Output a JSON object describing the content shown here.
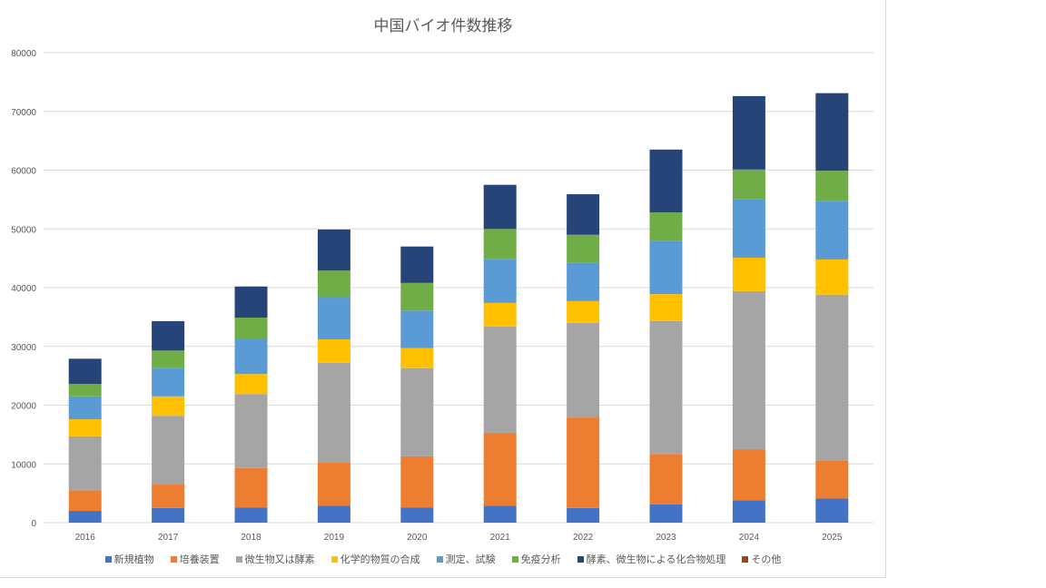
{
  "chart_data": {
    "type": "bar",
    "stacked": true,
    "title": "中国バイオ件数推移",
    "xlabel": "",
    "ylabel": "",
    "ylim": [
      0,
      80000
    ],
    "yticks": [
      "0",
      "10000",
      "20000",
      "30000",
      "40000",
      "50000",
      "60000",
      "70000",
      "80000"
    ],
    "grid": true,
    "legend_position": "bottom",
    "categories": [
      "2016",
      "2017",
      "2018",
      "2019",
      "2020",
      "2021",
      "2022",
      "2023",
      "2024",
      "2025"
    ],
    "series": [
      {
        "name": "新規植物",
        "color": "#4472c4",
        "values": [
          2000,
          2500,
          2600,
          2900,
          2600,
          2900,
          2500,
          3100,
          3800,
          4100
        ]
      },
      {
        "name": "培養装置",
        "color": "#ed7d31",
        "values": [
          3500,
          4100,
          6700,
          7400,
          8700,
          12400,
          15400,
          8600,
          8700,
          6400
        ]
      },
      {
        "name": "微生物又は酵素",
        "color": "#a5a5a5",
        "values": [
          9200,
          11600,
          12600,
          16900,
          15000,
          18100,
          16100,
          22600,
          26900,
          28300
        ]
      },
      {
        "name": "化学的物質の合成",
        "color": "#ffc000",
        "values": [
          2900,
          3300,
          3400,
          4000,
          3400,
          4000,
          3700,
          4600,
          5700,
          6000
        ]
      },
      {
        "name": "測定、試験",
        "color": "#5b9bd5",
        "values": [
          3900,
          4800,
          5900,
          7100,
          6400,
          7500,
          6600,
          9000,
          9900,
          9900
        ]
      },
      {
        "name": "免疫分析",
        "color": "#70ad47",
        "values": [
          2100,
          3000,
          3700,
          4600,
          4700,
          5100,
          4700,
          4900,
          5100,
          5200
        ]
      },
      {
        "name": "酵素、微生物による化合物処理",
        "color": "#264478",
        "values": [
          4300,
          5000,
          5300,
          7000,
          6200,
          7500,
          6900,
          10700,
          12500,
          13200
        ]
      },
      {
        "name": "その他",
        "color": "#9e480e",
        "values": [
          0,
          0,
          0,
          0,
          0,
          0,
          0,
          0,
          0,
          0
        ]
      }
    ]
  }
}
